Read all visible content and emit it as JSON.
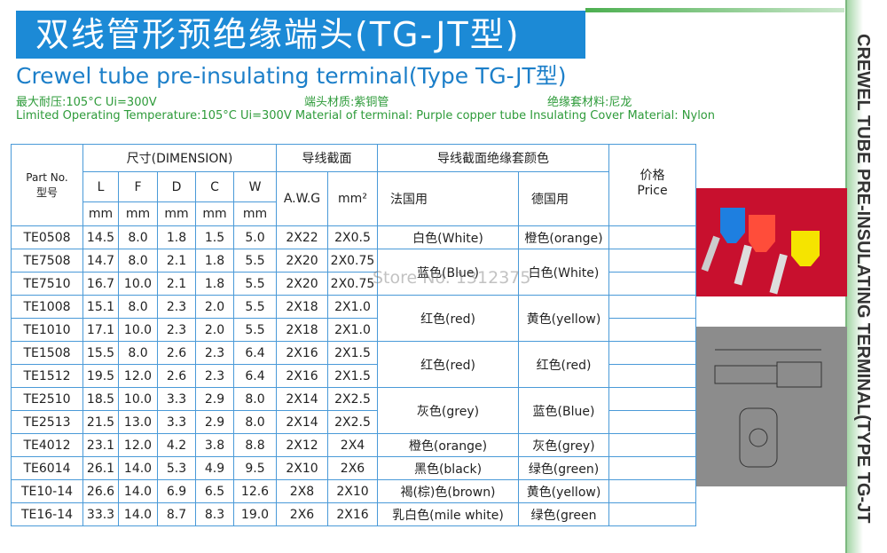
{
  "header": {
    "title_cn": "双线管形预绝缘端头(TG-JT型)",
    "title_en": "Crewel tube pre-insulating terminal(Type TG-JT型)",
    "specs_cn": [
      "最大耐压:105°C Ui=300V",
      "端头材质:紫铜管",
      "绝缘套材料:尼龙"
    ],
    "specs_en": "Limited Operating Temperature:105°C  Ui=300V Material of terminal: Purple  copper  tube Insulating  Cover  Material: Nylon"
  },
  "side_title": "CREWEL TUBE PRE-INSULATING TERMINAL(TYPE TG-JT",
  "watermark": "Store No. 1312375",
  "table": {
    "head": {
      "part_no": "Part No.",
      "part_no_cn": "型号",
      "dimension": "尺寸(DIMENSION)",
      "dims": [
        "L",
        "F",
        "D",
        "C",
        "W"
      ],
      "units": [
        "mm",
        "mm",
        "mm",
        "mm",
        "mm"
      ],
      "wire_section": "导线截面",
      "awg": "A.W.G",
      "mm2": "mm²",
      "color_title": "导线截面绝缘套颜色",
      "france": "法国用",
      "germany": "德国用",
      "price_cn": "价格",
      "price": "Price"
    },
    "rows": [
      [
        "TE0508",
        "14.5",
        "8.0",
        "1.8",
        "1.5",
        "5.0",
        "2X22",
        "2X0.5"
      ],
      [
        "TE7508",
        "14.7",
        "8.0",
        "2.1",
        "1.8",
        "5.5",
        "2X20",
        "2X0.75"
      ],
      [
        "TE7510",
        "16.7",
        "10.0",
        "2.1",
        "1.8",
        "5.5",
        "2X20",
        "2X0.75"
      ],
      [
        "TE1008",
        "15.1",
        "8.0",
        "2.3",
        "2.0",
        "5.5",
        "2X18",
        "2X1.0"
      ],
      [
        "TE1010",
        "17.1",
        "10.0",
        "2.3",
        "2.0",
        "5.5",
        "2X18",
        "2X1.0"
      ],
      [
        "TE1508",
        "15.5",
        "8.0",
        "2.6",
        "2.3",
        "6.4",
        "2X16",
        "2X1.5"
      ],
      [
        "TE1512",
        "19.5",
        "12.0",
        "2.6",
        "2.3",
        "6.4",
        "2X16",
        "2X1.5"
      ],
      [
        "TE2510",
        "18.5",
        "10.0",
        "3.3",
        "2.9",
        "8.0",
        "2X14",
        "2X2.5"
      ],
      [
        "TE2513",
        "21.5",
        "13.0",
        "3.3",
        "2.9",
        "8.0",
        "2X14",
        "2X2.5"
      ],
      [
        "TE4012",
        "23.1",
        "12.0",
        "4.2",
        "3.8",
        "8.8",
        "2X12",
        "2X4"
      ],
      [
        "TE6014",
        "26.1",
        "14.0",
        "5.3",
        "4.9",
        "9.5",
        "2X10",
        "2X6"
      ],
      [
        "TE10-14",
        "26.6",
        "14.0",
        "6.9",
        "6.5",
        "12.6",
        "2X8",
        "2X10"
      ],
      [
        "TE16-14",
        "33.3",
        "14.0",
        "8.7",
        "8.3",
        "19.0",
        "2X6",
        "2X16"
      ]
    ],
    "colors": [
      [
        "白色(White)",
        "橙色(orange)"
      ],
      [
        "蓝色(Blue)",
        "白色(White)"
      ],
      null,
      [
        "红色(red)",
        "黄色(yellow)"
      ],
      null,
      [
        "红色(red)",
        "红色(red)"
      ],
      null,
      [
        "灰色(grey)",
        "蓝色(Blue)"
      ],
      null,
      [
        "橙色(orange)",
        "灰色(grey)"
      ],
      [
        "黑色(black)",
        "绿色(green)"
      ],
      [
        "褐(棕)色(brown)",
        "黄色(yellow)"
      ],
      [
        "乳白色(mile white)",
        "绿色(green"
      ]
    ]
  }
}
